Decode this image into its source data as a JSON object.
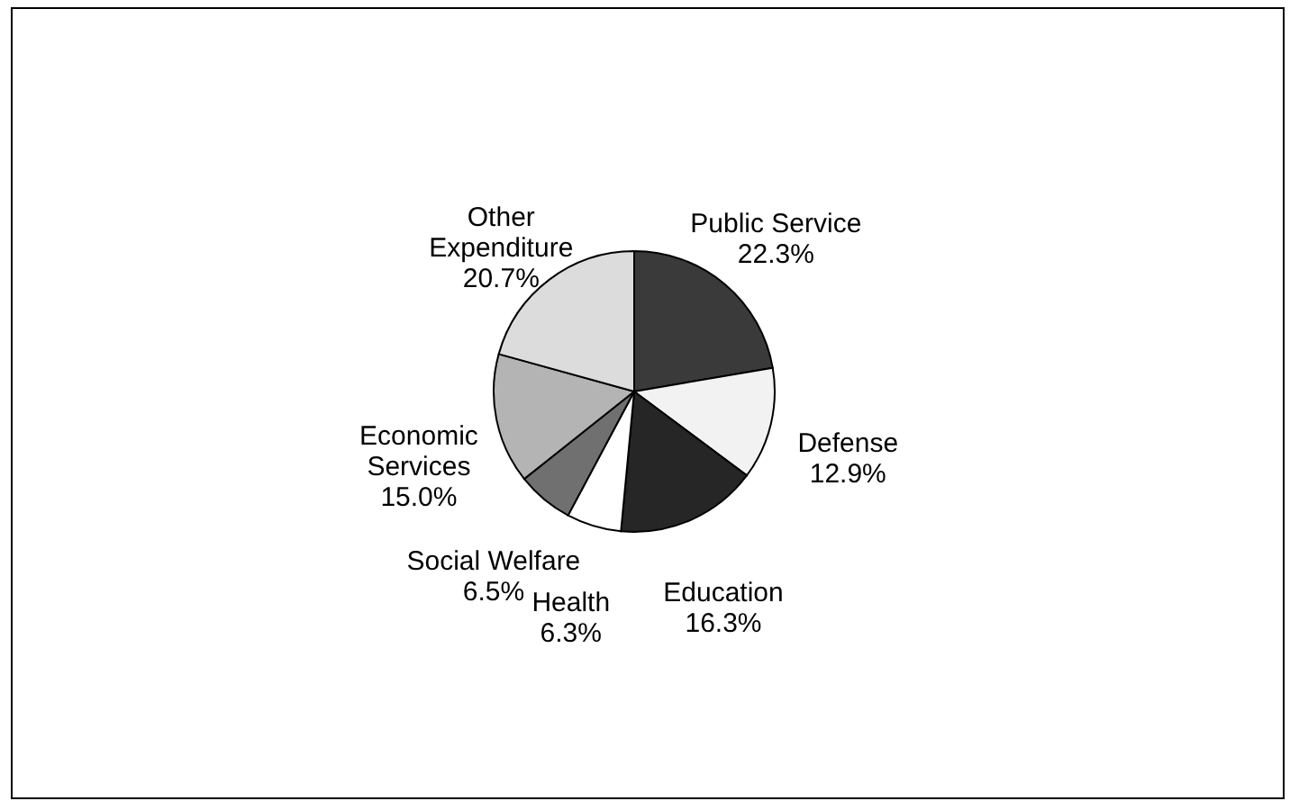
{
  "chart_data": {
    "type": "pie",
    "categories": [
      "Public Service",
      "Defense",
      "Education",
      "Health",
      "Social Welfare",
      "Economic\nServices",
      "Other\nExpenditure"
    ],
    "values": [
      22.3,
      12.9,
      16.3,
      6.3,
      6.5,
      15.0,
      20.7
    ],
    "colors": [
      "#3a3a3a",
      "#f2f2f2",
      "#262626",
      "#ffffff",
      "#707070",
      "#b4b4b4",
      "#dcdcdc"
    ],
    "value_labels": [
      "22.3%",
      "12.9%",
      "16.3%",
      "6.3%",
      "6.5%",
      "15.0%",
      "20.7%"
    ],
    "legend": false
  }
}
